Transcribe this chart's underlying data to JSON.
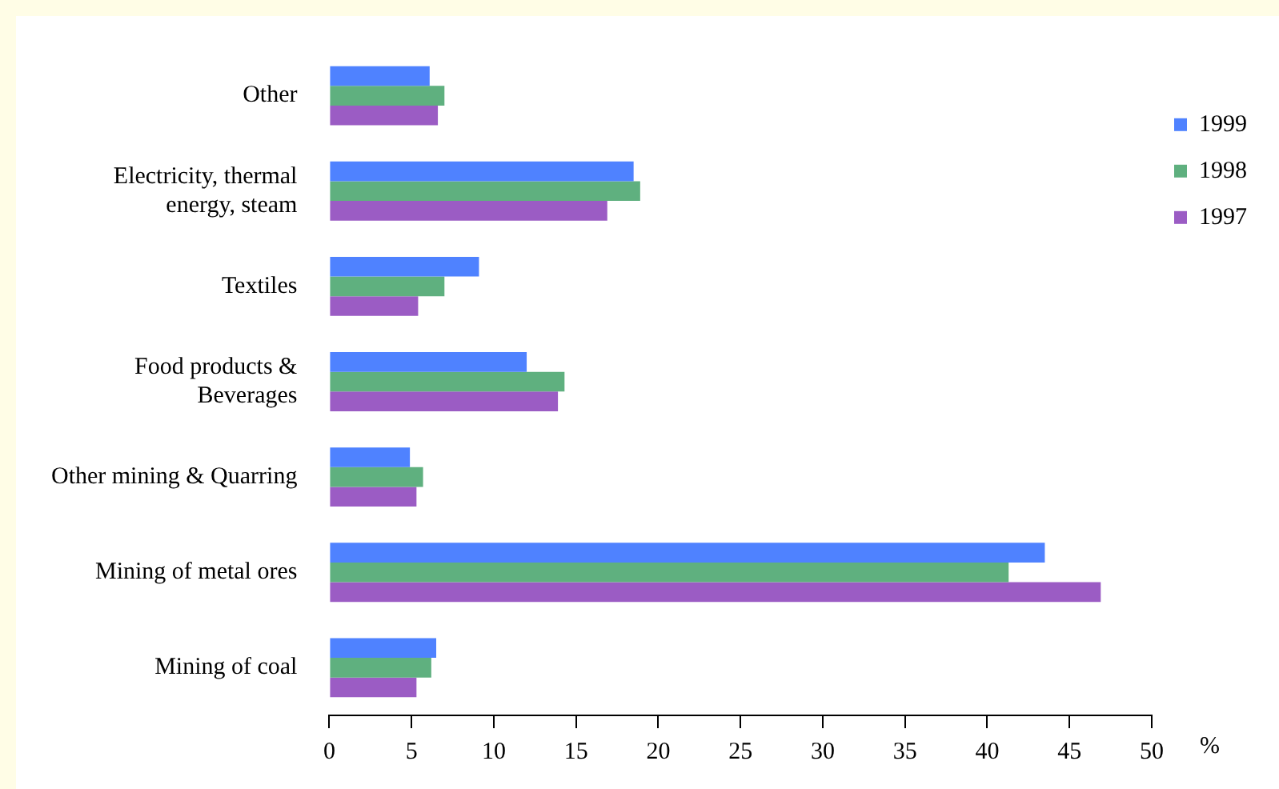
{
  "chart_data": {
    "type": "bar",
    "orientation": "horizontal",
    "xlabel": "%",
    "categories": [
      "Other",
      "Electricity, thermal energy, steam",
      "Textiles",
      "Food products & Beverages",
      "Other mining & Quarring",
      "Mining of metal ores",
      "Mining of coal"
    ],
    "series": [
      {
        "name": "1999",
        "color": "#4f82ff",
        "values": [
          6.1,
          18.5,
          9.1,
          12.0,
          4.9,
          43.5,
          6.5
        ]
      },
      {
        "name": "1998",
        "color": "#5fb07f",
        "values": [
          7.0,
          18.9,
          7.0,
          14.3,
          5.7,
          41.3,
          6.2
        ]
      },
      {
        "name": "1997",
        "color": "#9b5cc4",
        "values": [
          6.6,
          16.9,
          5.4,
          13.9,
          5.3,
          46.9,
          5.3
        ]
      }
    ],
    "xlim": [
      0,
      50
    ],
    "xticks": [
      0,
      5,
      10,
      15,
      20,
      25,
      30,
      35,
      40,
      45,
      50
    ],
    "grid": false,
    "legend": "top right"
  }
}
